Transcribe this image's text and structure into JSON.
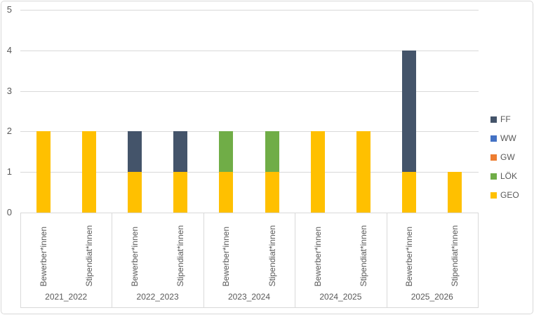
{
  "chart_data": {
    "type": "bar",
    "stacked": true,
    "title": "",
    "xlabel": "",
    "ylabel": "",
    "ylim": [
      0,
      5
    ],
    "y_ticks": [
      0,
      1,
      2,
      3,
      4,
      5
    ],
    "grid": true,
    "legend_position": "right",
    "categories_level1": [
      "Bewerber*innen",
      "Stipendiat*innen",
      "Bewerber*innen",
      "Stipendiat*innen",
      "Bewerber*innen",
      "Stipendiat*innen",
      "Bewerber*innen",
      "Stipendiat*innen",
      "Bewerber*innen",
      "Stipendiat*innen"
    ],
    "categories_level2": [
      "2021_2022",
      "2022_2023",
      "2023_2024",
      "2024_2025",
      "2025_2026"
    ],
    "series": [
      {
        "name": "FF",
        "color": "#44546A",
        "values": [
          0,
          0,
          1,
          1,
          0,
          0,
          0,
          0,
          3,
          0
        ]
      },
      {
        "name": "WW",
        "color": "#4472C4",
        "values": [
          0,
          0,
          0,
          0,
          0,
          0,
          0,
          0,
          0,
          0
        ]
      },
      {
        "name": "GW",
        "color": "#ED7D31",
        "values": [
          0,
          0,
          0,
          0,
          0,
          0,
          0,
          0,
          0,
          0
        ]
      },
      {
        "name": "LÖK",
        "color": "#70AD47",
        "values": [
          0,
          0,
          0,
          0,
          1,
          1,
          0,
          0,
          0,
          0
        ]
      },
      {
        "name": "GEO",
        "color": "#FFC000",
        "values": [
          2,
          2,
          1,
          1,
          1,
          1,
          2,
          2,
          1,
          1
        ]
      }
    ],
    "colors": {
      "grid": "#D9D9D9",
      "axis_text": "#595959",
      "chart_border": "#D9D9D9",
      "background": "#FFFFFF"
    }
  }
}
